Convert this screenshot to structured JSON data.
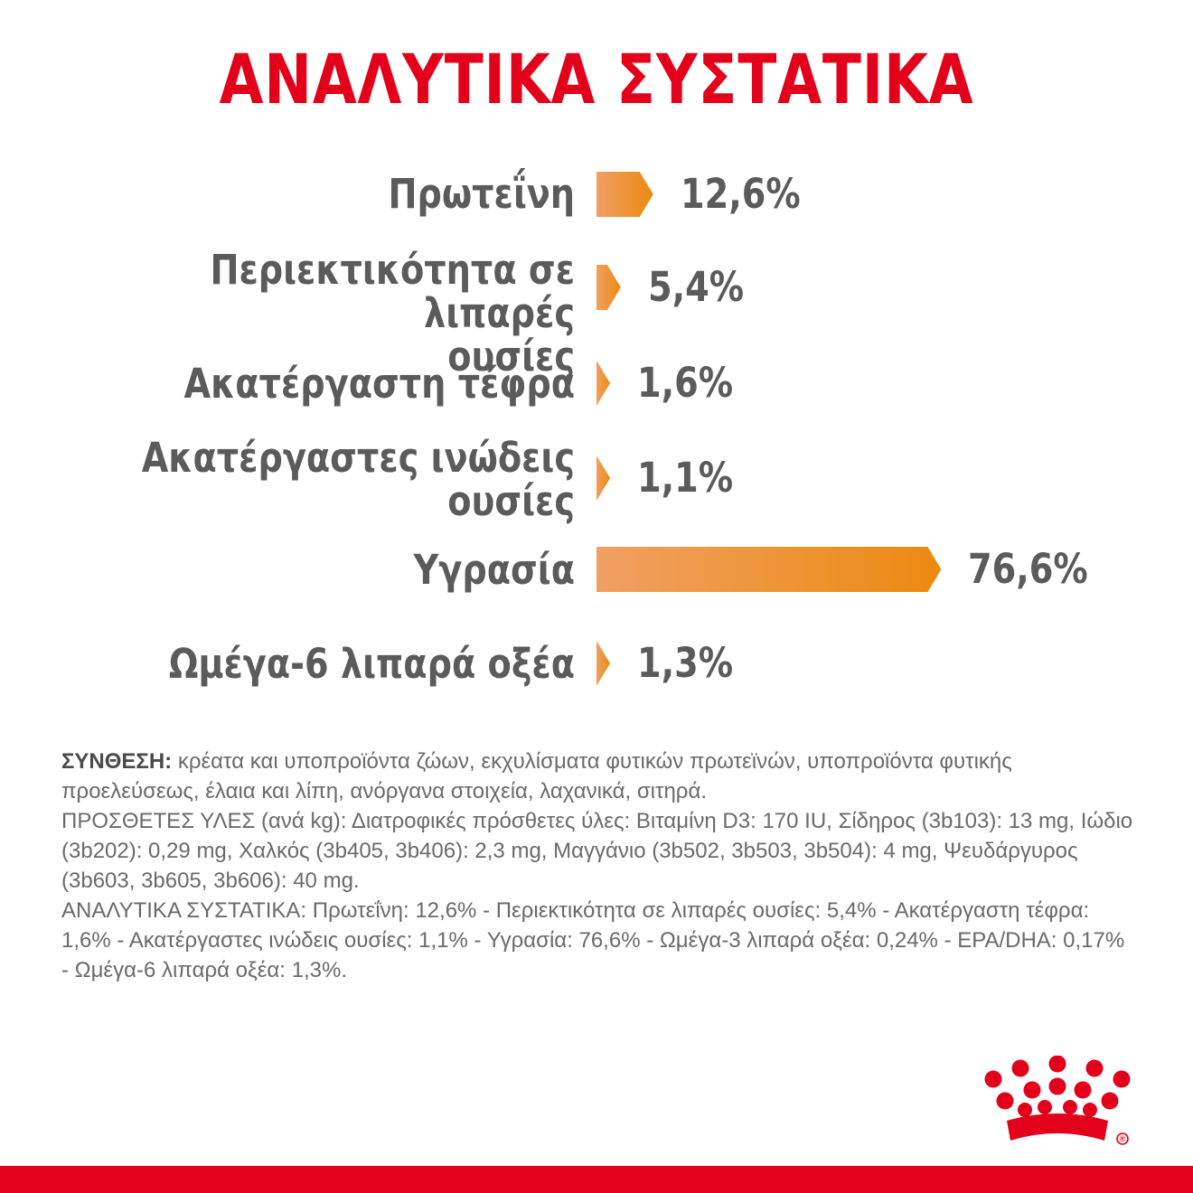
{
  "page": {
    "title": "ΑΝΑΛΥΤΙΚΑ ΣΥΣΤΑΤΙΚΑ",
    "brand_color": "#e2001a",
    "bar_gradient": [
      "#f0a063",
      "#ec8a10"
    ],
    "text_color": "#5b5b5b"
  },
  "chart_data": {
    "type": "bar",
    "orientation": "horizontal",
    "categories": [
      [
        "Πρωτεΐνη"
      ],
      [
        "Περιεκτικότητα σε λιπαρές",
        "ουσίες"
      ],
      [
        "Ακατέργαστη τέφρα"
      ],
      [
        "Ακατέργαστες ινώδεις",
        "ουσίες"
      ],
      [
        "Υγρασία"
      ],
      [
        "Ωμέγα-6 λιπαρά οξέα"
      ]
    ],
    "values": [
      12.6,
      5.4,
      1.6,
      1.1,
      76.6,
      1.3
    ],
    "value_labels": [
      "12,6%",
      "5,4%",
      "1,6%",
      "1,1%",
      "76,6%",
      "1,3%"
    ],
    "unit": "%",
    "grid": false,
    "legend": "none"
  },
  "composition": {
    "lead": "ΣΥΝΘΕΣΗ:",
    "lead_text": " κρέατα και υποπροϊόντα ζώων, εκχυλίσματα φυτικών πρωτεϊνών, υποπροϊόντα φυτικής προελεύσεως, έλαια και λίπη, ανόργανα στοιχεία, λαχανικά, σιτηρά.",
    "additives": "ΠΡΟΣΘΕΤΕΣ ΥΛΕΣ (ανά kg): Διατροφικές πρόσθετες ύλες: Βιταμίνη D3: 170 IU, Σίδηρος (3b103): 13 mg, Ιώδιο (3b202): 0,29 mg, Χαλκός (3b405, 3b406): 2,3 mg, Μαγγάνιο (3b502, 3b503, 3b504): 4 mg, Ψευδάργυρος (3b603, 3b605, 3b606): 40 mg.",
    "analytical": "ΑΝΑΛΥΤΙΚΑ ΣΥΣΤΑΤΙΚΑ: Πρωτεΐνη: 12,6% - Περιεκτικότητα σε λιπαρές ουσίες: 5,4% - Ακατέργαστη τέφρα: 1,6% - Ακατέργαστες ινώδεις ουσίες: 1,1% - Υγρασία: 76,6% - Ωμέγα-3 λιπαρά οξέα: 0,24% - EPA/DHA: 0,17% - Ωμέγα-6 λιπαρά οξέα: 1,3%."
  },
  "logo": {
    "icon": "royal-canin-crown-logo",
    "mark": "®"
  }
}
